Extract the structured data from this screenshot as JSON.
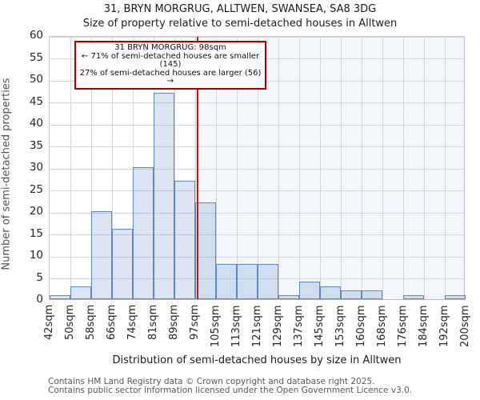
{
  "title": "31, BRYN MORGRUG, ALLTWEN, SWANSEA, SA8 3DG",
  "subtitle": "Size of property relative to semi-detached houses in Alltwen",
  "y_axis_label": "Number of semi-detached properties",
  "x_axis_label": "Distribution of semi-detached houses by size in Alltwen",
  "annotation": {
    "line1": "31 BRYN MORGRUG: 98sqm",
    "line2": "← 71% of semi-detached houses are smaller (145)",
    "line3": "27% of semi-detached houses are larger (56) →"
  },
  "footer": {
    "line1": "Contains HM Land Registry data © Crown copyright and database right 2025.",
    "line2": "Contains public sector information licensed under the Open Government Licence v3.0."
  },
  "chart_data": {
    "type": "bar",
    "title": "31, BRYN MORGRUG, ALLTWEN, SWANSEA, SA8 3DG",
    "subtitle": "Size of property relative to semi-detached houses in Alltwen",
    "xlabel": "Distribution of semi-detached houses by size in Alltwen",
    "ylabel": "Number of semi-detached properties",
    "bin_edge_labels": [
      "42sqm",
      "50sqm",
      "58sqm",
      "66sqm",
      "74sqm",
      "81sqm",
      "89sqm",
      "97sqm",
      "105sqm",
      "113sqm",
      "121sqm",
      "129sqm",
      "137sqm",
      "145sqm",
      "153sqm",
      "160sqm",
      "168sqm",
      "176sqm",
      "184sqm",
      "192sqm",
      "200sqm"
    ],
    "values": [
      1,
      3,
      20,
      16,
      30,
      47,
      27,
      22,
      8,
      8,
      8,
      1,
      4,
      3,
      2,
      2,
      0,
      1,
      0,
      1
    ],
    "ylim": [
      0,
      60
    ],
    "y_ticks": [
      0,
      5,
      10,
      15,
      20,
      25,
      30,
      35,
      40,
      45,
      50,
      55,
      60
    ],
    "grid": true,
    "marker": {
      "sqm": 98,
      "smaller_pct": 71,
      "smaller_count": 145,
      "larger_pct": 27,
      "larger_count": 56
    },
    "colors": {
      "bar_fill": "rgba(91,136,201,0.22)",
      "bar_stroke": "#5b88c9",
      "marker_line": "#cc1111",
      "annotation_border": "#aa0000",
      "gridline": "#d5d5dc",
      "shade_right_of_marker": "rgba(120,150,215,0.09)"
    }
  }
}
